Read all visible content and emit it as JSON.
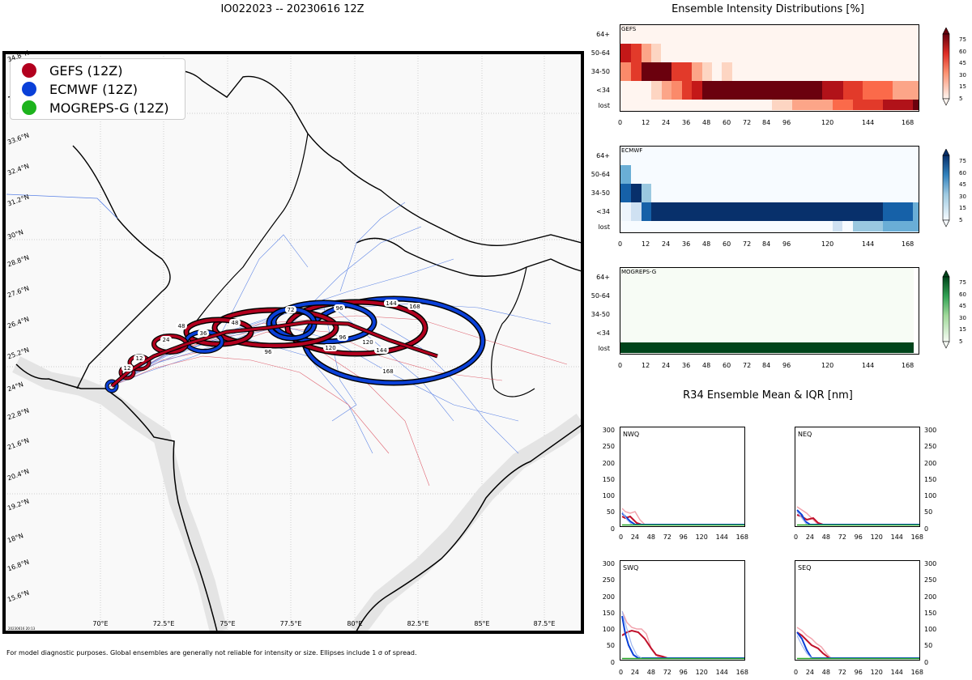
{
  "figure": {
    "map_title": "IO022023 -- 20230616 12Z",
    "footnote": "For model diagnostic purposes. Global ensembles are generally not reliable for intensity or size. Ellipses include 1 σ of spread.",
    "stamp": "20230616 20:13"
  },
  "legend": [
    {
      "label": "GEFS (12Z)",
      "color": "#b2001e"
    },
    {
      "label": "ECMWF (12Z)",
      "color": "#0a40d8"
    },
    {
      "label": "MOGREPS-G (12Z)",
      "color": "#1db31d"
    }
  ],
  "map": {
    "lat_labels": [
      "34.8°N",
      "33.6°N",
      "32.4°N",
      "31.2°N",
      "30°N",
      "28.8°N",
      "27.6°N",
      "26.4°N",
      "25.2°N",
      "24°N",
      "22.8°N",
      "21.6°N",
      "20.4°N",
      "19.2°N",
      "18°N",
      "16.8°N",
      "15.6°N"
    ],
    "lon_labels": [
      "70°E",
      "72.5°E",
      "75°E",
      "77.5°E",
      "80°E",
      "82.5°E",
      "85°E",
      "87.5°E"
    ]
  },
  "chart_data": [
    {
      "type": "heatmap",
      "title": "Ensemble Intensity Distributions [%]",
      "panel_label": "GEFS",
      "rows": [
        "64+",
        "50-64",
        "34-50",
        "<34",
        "lost"
      ],
      "x_ticks": [
        "0",
        "12",
        "24",
        "36",
        "48",
        "60",
        "72",
        "84",
        "96",
        "120",
        "144",
        "168"
      ],
      "colorbar": [
        5,
        15,
        30,
        45,
        60,
        75
      ],
      "colormap": "Reds"
    },
    {
      "type": "heatmap",
      "panel_label": "ECMWF",
      "rows": [
        "64+",
        "50-64",
        "34-50",
        "<34",
        "lost"
      ],
      "x_ticks": [
        "0",
        "12",
        "24",
        "36",
        "48",
        "60",
        "72",
        "84",
        "96",
        "120",
        "144",
        "168"
      ],
      "colorbar": [
        5,
        15,
        30,
        45,
        60,
        75
      ],
      "colormap": "Blues"
    },
    {
      "type": "heatmap",
      "panel_label": "MOGREPS-G",
      "rows": [
        "64+",
        "50-64",
        "34-50",
        "<34",
        "lost"
      ],
      "x_ticks": [
        "0",
        "12",
        "24",
        "36",
        "48",
        "60",
        "72",
        "84",
        "96",
        "120",
        "144",
        "168"
      ],
      "colorbar": [
        5,
        15,
        30,
        45,
        60,
        75
      ],
      "colormap": "Greens"
    },
    {
      "type": "line",
      "title": "R34 Ensemble Mean & IQR [nm]",
      "quadrants": [
        "NWQ",
        "NEQ",
        "SWQ",
        "SEQ"
      ],
      "x_ticks": [
        "0",
        "24",
        "48",
        "72",
        "96",
        "120",
        "144",
        "168"
      ],
      "y_ticks": [
        "0",
        "50",
        "100",
        "150",
        "200",
        "250",
        "300"
      ],
      "ylim": [
        0,
        300
      ]
    }
  ]
}
